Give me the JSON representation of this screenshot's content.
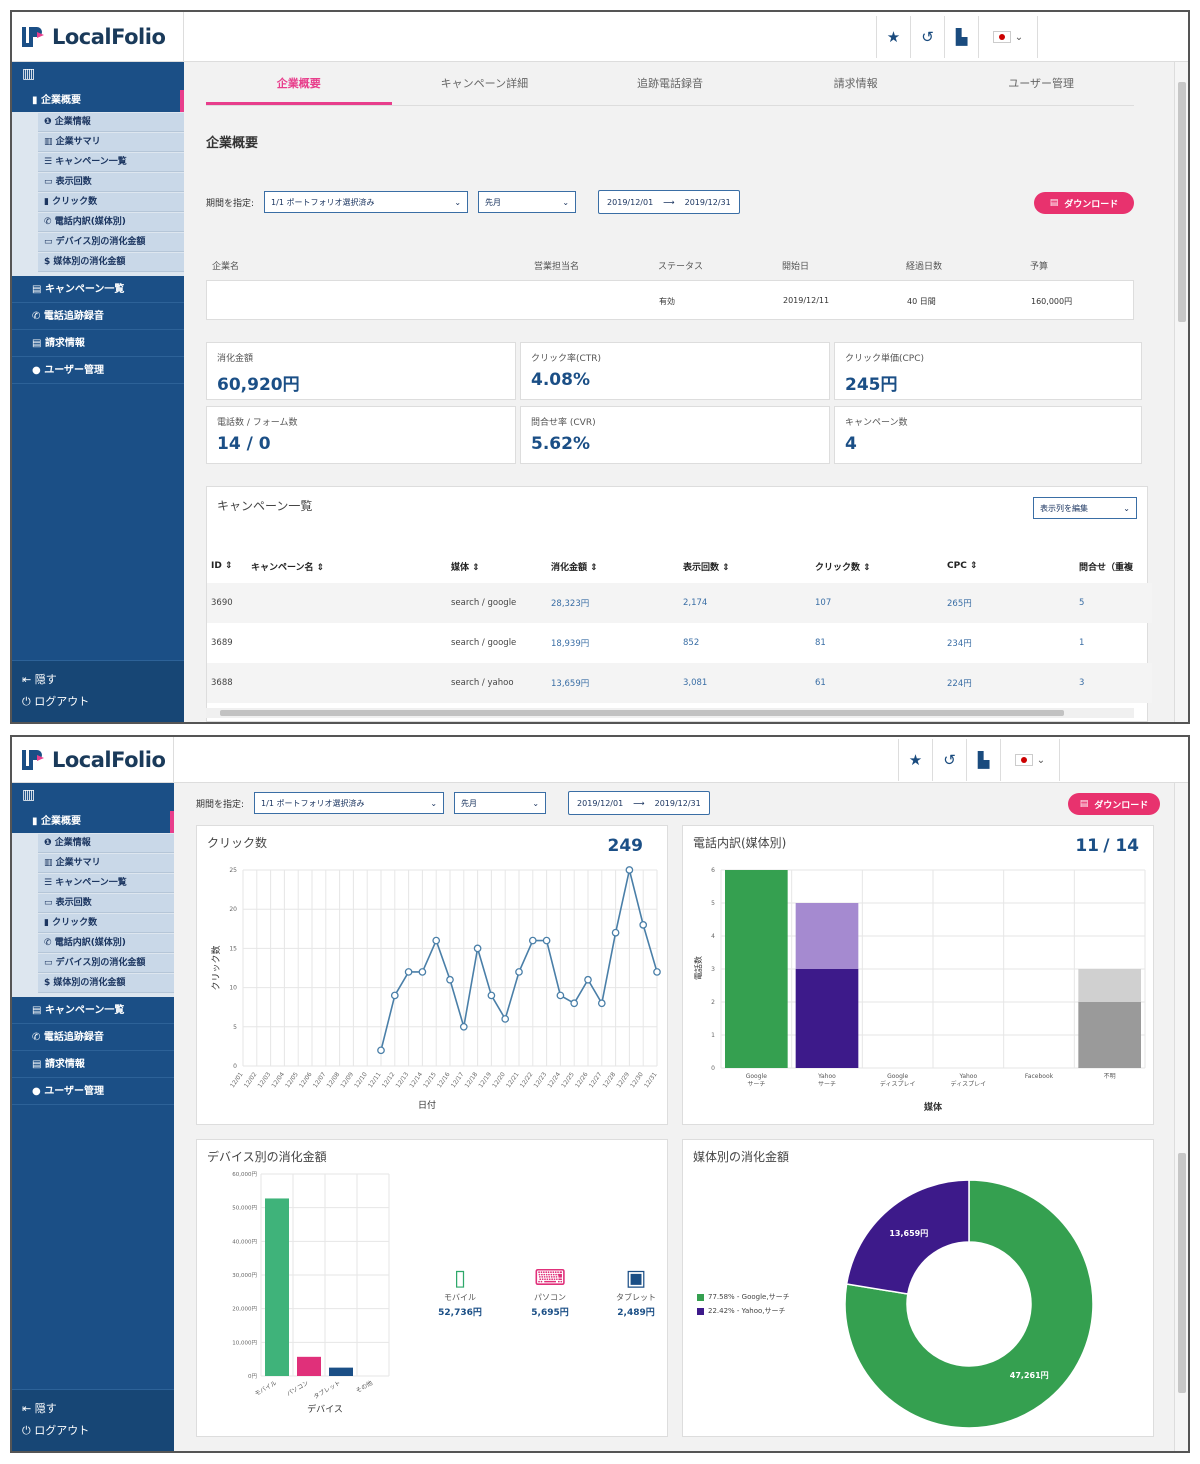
{
  "app": {
    "name": "LocalFolio"
  },
  "toolbar": {
    "star_icon": "star-icon",
    "history_icon": "history-icon",
    "building_icon": "building-icon",
    "language": "jp-flag"
  },
  "sidebar": {
    "section_title": "企業概要",
    "sub_items": [
      "企業情報",
      "企業サマリ",
      "キャンペーン一覧",
      "表示回数",
      "クリック数",
      "電話内訳(媒体別)",
      "デバイス別の消化金額",
      "媒体別の消化金額"
    ],
    "sub_glyphs": [
      "❶",
      "▥",
      "☰",
      "▭",
      "▮",
      "✆",
      "▭",
      "$"
    ],
    "items": [
      "キャンペーン一覧",
      "電話追跡録音",
      "請求情報",
      "ユーザー管理"
    ],
    "item_glyphs": [
      "▤",
      "✆",
      "▤",
      "●"
    ],
    "hide_label": "隠す",
    "logout_label": "ログアウト"
  },
  "tabs": [
    "企業概要",
    "キャンペーン詳細",
    "追跡電話録音",
    "請求情報",
    "ユーザー管理"
  ],
  "page_title": "企業概要",
  "filters": {
    "period_label": "期間を指定:",
    "portfolio_select": "1/1 ポートフォリオ選択済み",
    "month_select": "先月",
    "date_from": "2019/12/01",
    "date_to": "2019/12/31",
    "download_label": "ダウンロード"
  },
  "company_info": {
    "headers": [
      "企業名",
      "営業担当名",
      "ステータス",
      "開始日",
      "経過日数",
      "予算"
    ],
    "values": [
      "",
      "",
      "有効",
      "2019/12/11",
      "40 日間",
      "160,000円"
    ]
  },
  "kpis": [
    {
      "label": "消化金額",
      "value": "60,920円"
    },
    {
      "label": "クリック率(CTR)",
      "value": "4.08%"
    },
    {
      "label": "クリック単価(CPC)",
      "value": "245円"
    },
    {
      "label": "電話数 / フォーム数",
      "value": "14 / 0"
    },
    {
      "label": "問合せ率 (CVR)",
      "value": "5.62%"
    },
    {
      "label": "キャンペーン数",
      "value": "4"
    }
  ],
  "campaign_table": {
    "title": "キャンペーン一覧",
    "columns_button": "表示列を編集",
    "headers": [
      "ID ⇕",
      "キャンペーン名 ⇕",
      "媒体 ⇕",
      "消化金額 ⇕",
      "表示回数 ⇕",
      "クリック数 ⇕",
      "CPC ⇕",
      "問合せ（重複"
    ],
    "rows": [
      [
        "3690",
        "",
        "search / google",
        "28,323円",
        "2,174",
        "107",
        "265円",
        "5"
      ],
      [
        "3689",
        "",
        "search / google",
        "18,939円",
        "852",
        "81",
        "234円",
        "1"
      ],
      [
        "3688",
        "",
        "search / yahoo",
        "13,659円",
        "3,081",
        "61",
        "224円",
        "3"
      ]
    ]
  },
  "clicks_card": {
    "title": "クリック数",
    "total": "249"
  },
  "calls_card": {
    "title": "電話内訳(媒体別)",
    "value": "11",
    "total": "/ 14"
  },
  "device_card": {
    "title": "デバイス別の消化金額",
    "devices": [
      {
        "label": "モバイル",
        "value": "52,736円",
        "icon": "smartphone-icon",
        "color": "#2ea86a"
      },
      {
        "label": "パソコン",
        "value": "5,695円",
        "icon": "laptop-icon",
        "color": "#e0307a"
      },
      {
        "label": "タブレット",
        "value": "2,489円",
        "icon": "tablet-icon",
        "color": "#1b4f86"
      }
    ]
  },
  "media_card": {
    "title": "媒体別の消化金額"
  },
  "chart_data": [
    {
      "type": "line",
      "title": "クリック数",
      "xlabel": "日付",
      "ylabel": "クリック数",
      "ylim": [
        0,
        25
      ],
      "yticks": [
        0,
        5,
        10,
        15,
        20,
        25
      ],
      "x": [
        "12/01",
        "12/02",
        "12/03",
        "12/04",
        "12/05",
        "12/06",
        "12/07",
        "12/08",
        "12/09",
        "12/10",
        "12/11",
        "12/12",
        "12/13",
        "12/14",
        "12/15",
        "12/16",
        "12/17",
        "12/18",
        "12/19",
        "12/20",
        "12/21",
        "12/22",
        "12/23",
        "12/24",
        "12/25",
        "12/26",
        "12/27",
        "12/28",
        "12/29",
        "12/30",
        "12/31"
      ],
      "values": [
        null,
        null,
        null,
        null,
        null,
        null,
        null,
        null,
        null,
        null,
        2,
        9,
        12,
        12,
        16,
        11,
        5,
        15,
        9,
        6,
        12,
        16,
        16,
        9,
        8,
        11,
        8,
        17,
        25,
        18,
        12
      ],
      "color": "#4a7fa8",
      "grid": true
    },
    {
      "type": "bar",
      "title": "電話内訳(媒体別)",
      "xlabel": "媒体",
      "ylabel": "電話数",
      "ylim": [
        0,
        6
      ],
      "yticks": [
        0,
        1,
        2,
        3,
        4,
        5,
        6
      ],
      "categories": [
        "Google\nサーチ",
        "Yahoo\nサーチ",
        "Google\nディスプレイ",
        "Yahoo\nディスプレイ",
        "Facebook",
        "不明"
      ],
      "series": [
        {
          "values": [
            6,
            3,
            0,
            0,
            0,
            2
          ],
          "colors": [
            "#35a050",
            "#3d1a8a",
            "#35a050",
            "#35a050",
            "#35a050",
            "#9a9a9a"
          ]
        },
        {
          "values": [
            0,
            2,
            0,
            0,
            0,
            1
          ],
          "colors": [
            "#8fd19e",
            "#a58ad0",
            "#8fd19e",
            "#8fd19e",
            "#8fd19e",
            "#d0d0d0"
          ]
        }
      ],
      "stacked": true,
      "grid": true
    },
    {
      "type": "bar",
      "title": "デバイス別の消化金額",
      "xlabel": "デバイス",
      "ylim": [
        0,
        60000
      ],
      "yticks": [
        "0円",
        "10,000円",
        "20,000円",
        "30,000円",
        "40,000円",
        "50,000円",
        "60,000円"
      ],
      "categories": [
        "モバイル",
        "パソコン",
        "タブレット",
        "その他"
      ],
      "values": [
        52736,
        5695,
        2489,
        0
      ],
      "colors": [
        "#3fb37a",
        "#e0307a",
        "#1b4f86",
        "#999999"
      ],
      "grid": true
    },
    {
      "type": "pie",
      "title": "媒体別の消化金額",
      "slices": [
        {
          "name": "77.58% - Google,サーチ",
          "value": 47261,
          "label": "47,261円",
          "color": "#35a050"
        },
        {
          "name": "22.42% - Yahoo,サーチ",
          "value": 13659,
          "label": "13,659円",
          "color": "#3d1a8a"
        }
      ],
      "donut": true,
      "legend": "left"
    }
  ]
}
